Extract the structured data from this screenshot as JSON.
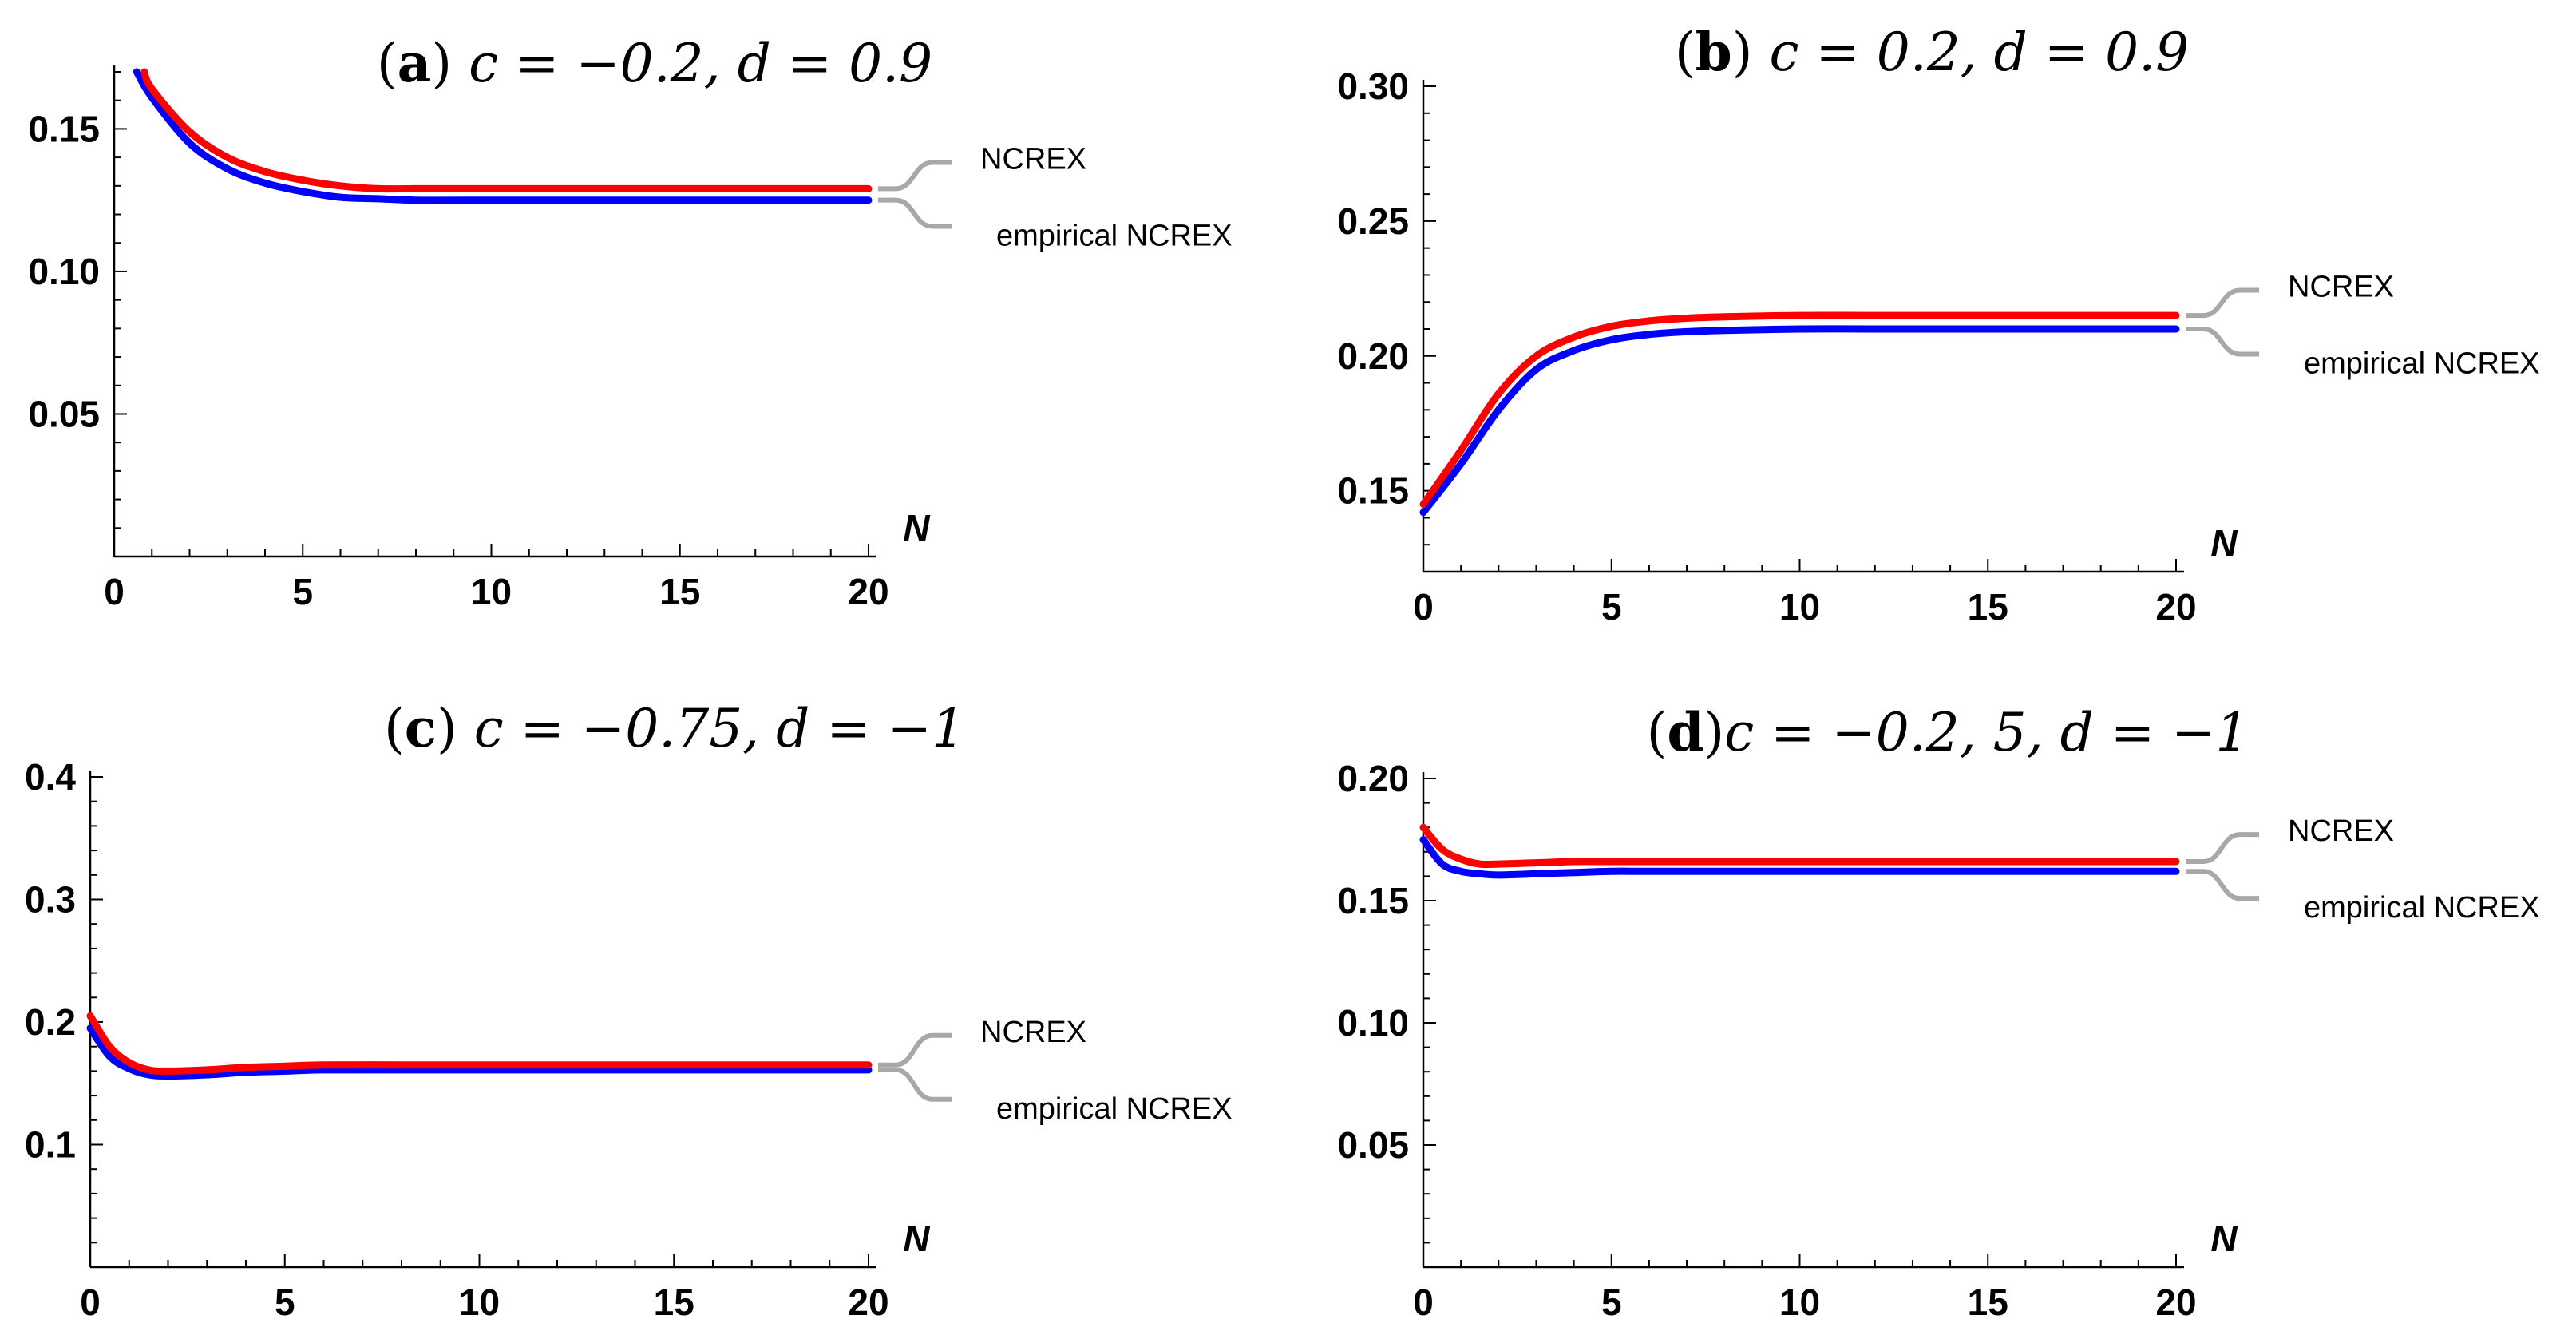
{
  "chart_data": [
    {
      "id": "a",
      "type": "line",
      "title": {
        "tag": "a",
        "expr": "c = −0.2, d = 0.9"
      },
      "xlabel": "N",
      "ylabel": "",
      "xlim": [
        0,
        20
      ],
      "ylim": [
        0,
        0.17
      ],
      "xticks": [
        "0",
        "5",
        "10",
        "15",
        "20"
      ],
      "yticks": [
        {
          "value": 0.05,
          "label": "0.05"
        },
        {
          "value": 0.1,
          "label": "0.10"
        },
        {
          "value": 0.15,
          "label": "0.15"
        }
      ],
      "series": [
        {
          "name": "NCREX",
          "color": "#ff0000",
          "x": [
            0.8,
            1,
            2,
            3,
            4,
            5,
            6,
            7,
            8,
            10,
            12,
            15,
            20
          ],
          "y": [
            0.17,
            0.164,
            0.149,
            0.14,
            0.135,
            0.132,
            0.13,
            0.129,
            0.129,
            0.129,
            0.129,
            0.129,
            0.129
          ]
        },
        {
          "name": "empirical NCREX",
          "color": "#0000ff",
          "x": [
            0.6,
            1,
            2,
            3,
            4,
            5,
            6,
            7,
            8,
            10,
            12,
            15,
            20
          ],
          "y": [
            0.17,
            0.161,
            0.145,
            0.136,
            0.131,
            0.128,
            0.126,
            0.1255,
            0.125,
            0.125,
            0.125,
            0.125,
            0.125
          ]
        }
      ],
      "legend": {
        "placement": "right",
        "labels": [
          "NCREX",
          "empirical NCREX"
        ]
      }
    },
    {
      "id": "b",
      "type": "line",
      "title": {
        "tag": "b",
        "expr": "c = 0.2, d = 0.9"
      },
      "xlabel": "N",
      "ylabel": "",
      "xlim": [
        0,
        20
      ],
      "ylim": [
        0.12,
        0.3
      ],
      "xticks": [
        "0",
        "5",
        "10",
        "15",
        "20"
      ],
      "yticks": [
        {
          "value": 0.15,
          "label": "0.15"
        },
        {
          "value": 0.2,
          "label": "0.20"
        },
        {
          "value": 0.25,
          "label": "0.25"
        },
        {
          "value": 0.3,
          "label": "0.30"
        }
      ],
      "series": [
        {
          "name": "NCREX",
          "color": "#ff0000",
          "x": [
            0,
            1,
            2,
            3,
            4,
            5,
            6,
            7,
            8,
            10,
            12,
            15,
            20
          ],
          "y": [
            0.145,
            0.165,
            0.186,
            0.2,
            0.207,
            0.211,
            0.213,
            0.214,
            0.2145,
            0.215,
            0.215,
            0.215,
            0.215
          ]
        },
        {
          "name": "empirical NCREX",
          "color": "#0000ff",
          "x": [
            0,
            1,
            2,
            3,
            4,
            5,
            6,
            7,
            8,
            10,
            12,
            15,
            20
          ],
          "y": [
            0.142,
            0.16,
            0.18,
            0.195,
            0.202,
            0.206,
            0.208,
            0.209,
            0.2095,
            0.21,
            0.21,
            0.21,
            0.21
          ]
        }
      ],
      "legend": {
        "placement": "right",
        "labels": [
          "NCREX",
          "empirical NCREX"
        ]
      }
    },
    {
      "id": "c",
      "type": "line",
      "title": {
        "tag": "c",
        "expr": "c = −0.75, d = −1"
      },
      "xlabel": "N",
      "ylabel": "",
      "xlim": [
        0,
        20
      ],
      "ylim": [
        0,
        0.4
      ],
      "xticks": [
        "0",
        "5",
        "10",
        "15",
        "20"
      ],
      "yticks": [
        {
          "value": 0.1,
          "label": "0.1"
        },
        {
          "value": 0.2,
          "label": "0.2"
        },
        {
          "value": 0.3,
          "label": "0.3"
        },
        {
          "value": 0.4,
          "label": "0.4"
        }
      ],
      "series": [
        {
          "name": "NCREX",
          "color": "#ff0000",
          "x": [
            0,
            0.5,
            1,
            1.5,
            2,
            3,
            4,
            5,
            6,
            8,
            10,
            15,
            20
          ],
          "y": [
            0.205,
            0.18,
            0.167,
            0.161,
            0.16,
            0.161,
            0.163,
            0.164,
            0.165,
            0.165,
            0.165,
            0.165,
            0.165
          ]
        },
        {
          "name": "empirical NCREX",
          "color": "#0000ff",
          "x": [
            0,
            0.5,
            1,
            1.5,
            2,
            3,
            4,
            5,
            6,
            8,
            10,
            15,
            20
          ],
          "y": [
            0.195,
            0.172,
            0.162,
            0.157,
            0.156,
            0.157,
            0.159,
            0.16,
            0.161,
            0.161,
            0.161,
            0.161,
            0.161
          ]
        }
      ],
      "legend": {
        "placement": "right",
        "labels": [
          "NCREX",
          "empirical NCREX"
        ]
      }
    },
    {
      "id": "d",
      "type": "line",
      "title": {
        "tag": "d",
        "expr": "c = −0.2, 5, d = −1"
      },
      "xlabel": "N",
      "ylabel": "",
      "xlim": [
        0,
        20
      ],
      "ylim": [
        0,
        0.2
      ],
      "xticks": [
        "0",
        "5",
        "10",
        "15",
        "20"
      ],
      "yticks": [
        {
          "value": 0.05,
          "label": "0.05"
        },
        {
          "value": 0.1,
          "label": "0.10"
        },
        {
          "value": 0.15,
          "label": "0.15"
        },
        {
          "value": 0.2,
          "label": "0.20"
        }
      ],
      "series": [
        {
          "name": "NCREX",
          "color": "#ff0000",
          "x": [
            0,
            0.5,
            1,
            1.5,
            2,
            3,
            4,
            5,
            6,
            8,
            10,
            15,
            20
          ],
          "y": [
            0.18,
            0.171,
            0.167,
            0.165,
            0.165,
            0.1655,
            0.166,
            0.166,
            0.166,
            0.166,
            0.166,
            0.166,
            0.166
          ]
        },
        {
          "name": "empirical NCREX",
          "color": "#0000ff",
          "x": [
            0,
            0.5,
            1,
            1.5,
            2,
            3,
            4,
            5,
            6,
            8,
            10,
            15,
            20
          ],
          "y": [
            0.175,
            0.165,
            0.162,
            0.161,
            0.1605,
            0.161,
            0.1615,
            0.162,
            0.162,
            0.162,
            0.162,
            0.162,
            0.162
          ]
        }
      ],
      "legend": {
        "placement": "right",
        "labels": [
          "NCREX",
          "empirical NCREX"
        ]
      }
    }
  ]
}
